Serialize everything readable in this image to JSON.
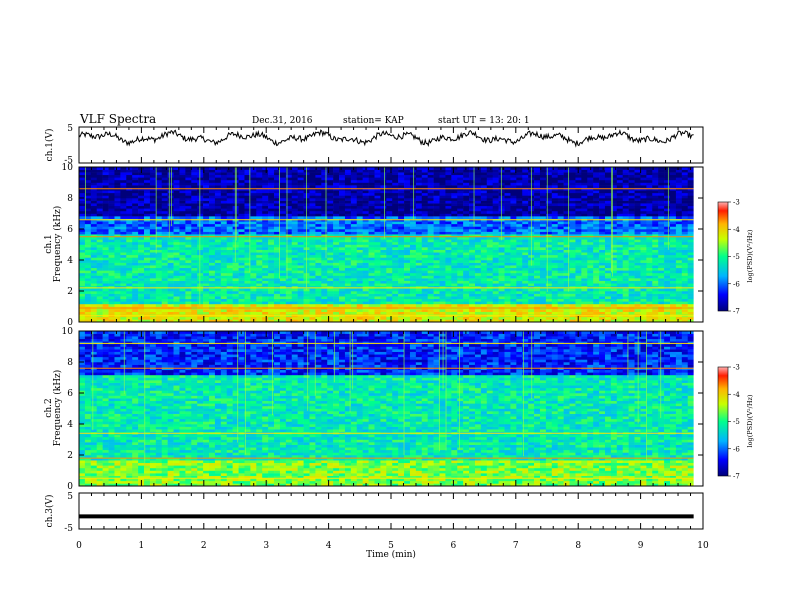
{
  "header": {
    "title": "VLF Spectra",
    "date": "Dec.31, 2016",
    "station": "station= KAP",
    "start": "start  UT =   13: 20: 1"
  },
  "chart_data": [
    {
      "type": "line",
      "panel": "waveform",
      "ylabel": "ch.1(V)",
      "yticks": [
        "5",
        "-5"
      ],
      "ylim": [
        -5,
        5
      ],
      "x_unit": "min",
      "xlim": [
        0,
        9.85
      ],
      "shape": "noisy waveform oscillating about ~2 V, amplitude ~±2 V"
    },
    {
      "type": "heatmap",
      "panel": "spectrogram",
      "ylabel": [
        "ch.1",
        "Frequency (kHz)"
      ],
      "yticks": [
        "0",
        "2",
        "4",
        "6",
        "8",
        "10"
      ],
      "ylim": [
        0,
        10
      ],
      "xlim": [
        0,
        9.85
      ],
      "colorbar": {
        "label": "log(PSD)(V²/Hz)",
        "ticks": [
          "-3",
          "-4",
          "-5",
          "-6",
          "-7"
        ],
        "range": [
          -7,
          -3
        ]
      },
      "bands": [
        {
          "from_khz": 0,
          "to_khz": 1.2,
          "level": -4.2
        },
        {
          "from_khz": 1.2,
          "to_khz": 5.6,
          "level": -5.2
        },
        {
          "from_khz": 5.6,
          "to_khz": 6.8,
          "level": -6.0
        },
        {
          "from_khz": 6.8,
          "to_khz": 10,
          "level": -6.8
        }
      ],
      "lines_khz": [
        0.4,
        0.9,
        2.2,
        5.5,
        6.6,
        8.6
      ]
    },
    {
      "type": "heatmap",
      "panel": "spectrogram",
      "ylabel": [
        "ch.2",
        "Frequency (kHz)"
      ],
      "yticks": [
        "0",
        "2",
        "4",
        "6",
        "8",
        "10"
      ],
      "ylim": [
        0,
        10
      ],
      "xlim": [
        0,
        9.85
      ],
      "colorbar": {
        "label": "log(PSD)(V²/Hz)",
        "ticks": [
          "-3",
          "-4",
          "-5",
          "-6",
          "-7"
        ],
        "range": [
          -7,
          -3
        ]
      },
      "bands": [
        {
          "from_khz": 0,
          "to_khz": 1.6,
          "level": -4.6
        },
        {
          "from_khz": 1.6,
          "to_khz": 7.2,
          "level": -5.2
        },
        {
          "from_khz": 7.2,
          "to_khz": 10,
          "level": -6.3
        }
      ],
      "lines_khz": [
        0.5,
        1.8,
        3.4,
        7.6,
        9.2
      ]
    },
    {
      "type": "line",
      "panel": "waveform",
      "ylabel": "ch.3(V)",
      "yticks": [
        "5",
        "-5"
      ],
      "ylim": [
        -5,
        5
      ],
      "xlim": [
        0,
        9.85
      ],
      "shape": "flat thick line at about -1.5 V"
    }
  ],
  "x_axis": {
    "label": "Time  (min)",
    "ticks": [
      "0",
      "1",
      "2",
      "3",
      "4",
      "5",
      "6",
      "7",
      "8",
      "9",
      "10"
    ],
    "xlim": [
      0,
      10
    ]
  }
}
